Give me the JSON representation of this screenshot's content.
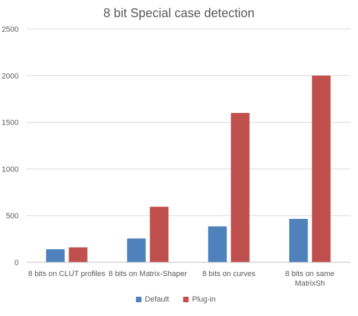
{
  "chart_data": {
    "type": "bar",
    "title": "8 bit Special case detection",
    "xlabel": "",
    "ylabel": "",
    "categories": [
      [
        "8 bits on CLUT profiles"
      ],
      [
        "8 bits on Matrix-Shaper"
      ],
      [
        "8 bits on curves"
      ],
      [
        "8 bits on same",
        "MatrixSh"
      ]
    ],
    "series": [
      {
        "name": "Default",
        "color": "#4f81bd",
        "values": [
          140,
          255,
          385,
          465
        ]
      },
      {
        "name": "Plug-in",
        "color": "#c0504d",
        "values": [
          160,
          595,
          1600,
          2000
        ]
      }
    ],
    "ylim": [
      0,
      2500
    ],
    "yticks": [
      0,
      500,
      1000,
      1500,
      2000,
      2500
    ],
    "grid": true,
    "legend_position": "bottom",
    "colors": {
      "gridline": "#d9d9d9",
      "axis": "#bfbfbf",
      "text": "#595959"
    }
  }
}
